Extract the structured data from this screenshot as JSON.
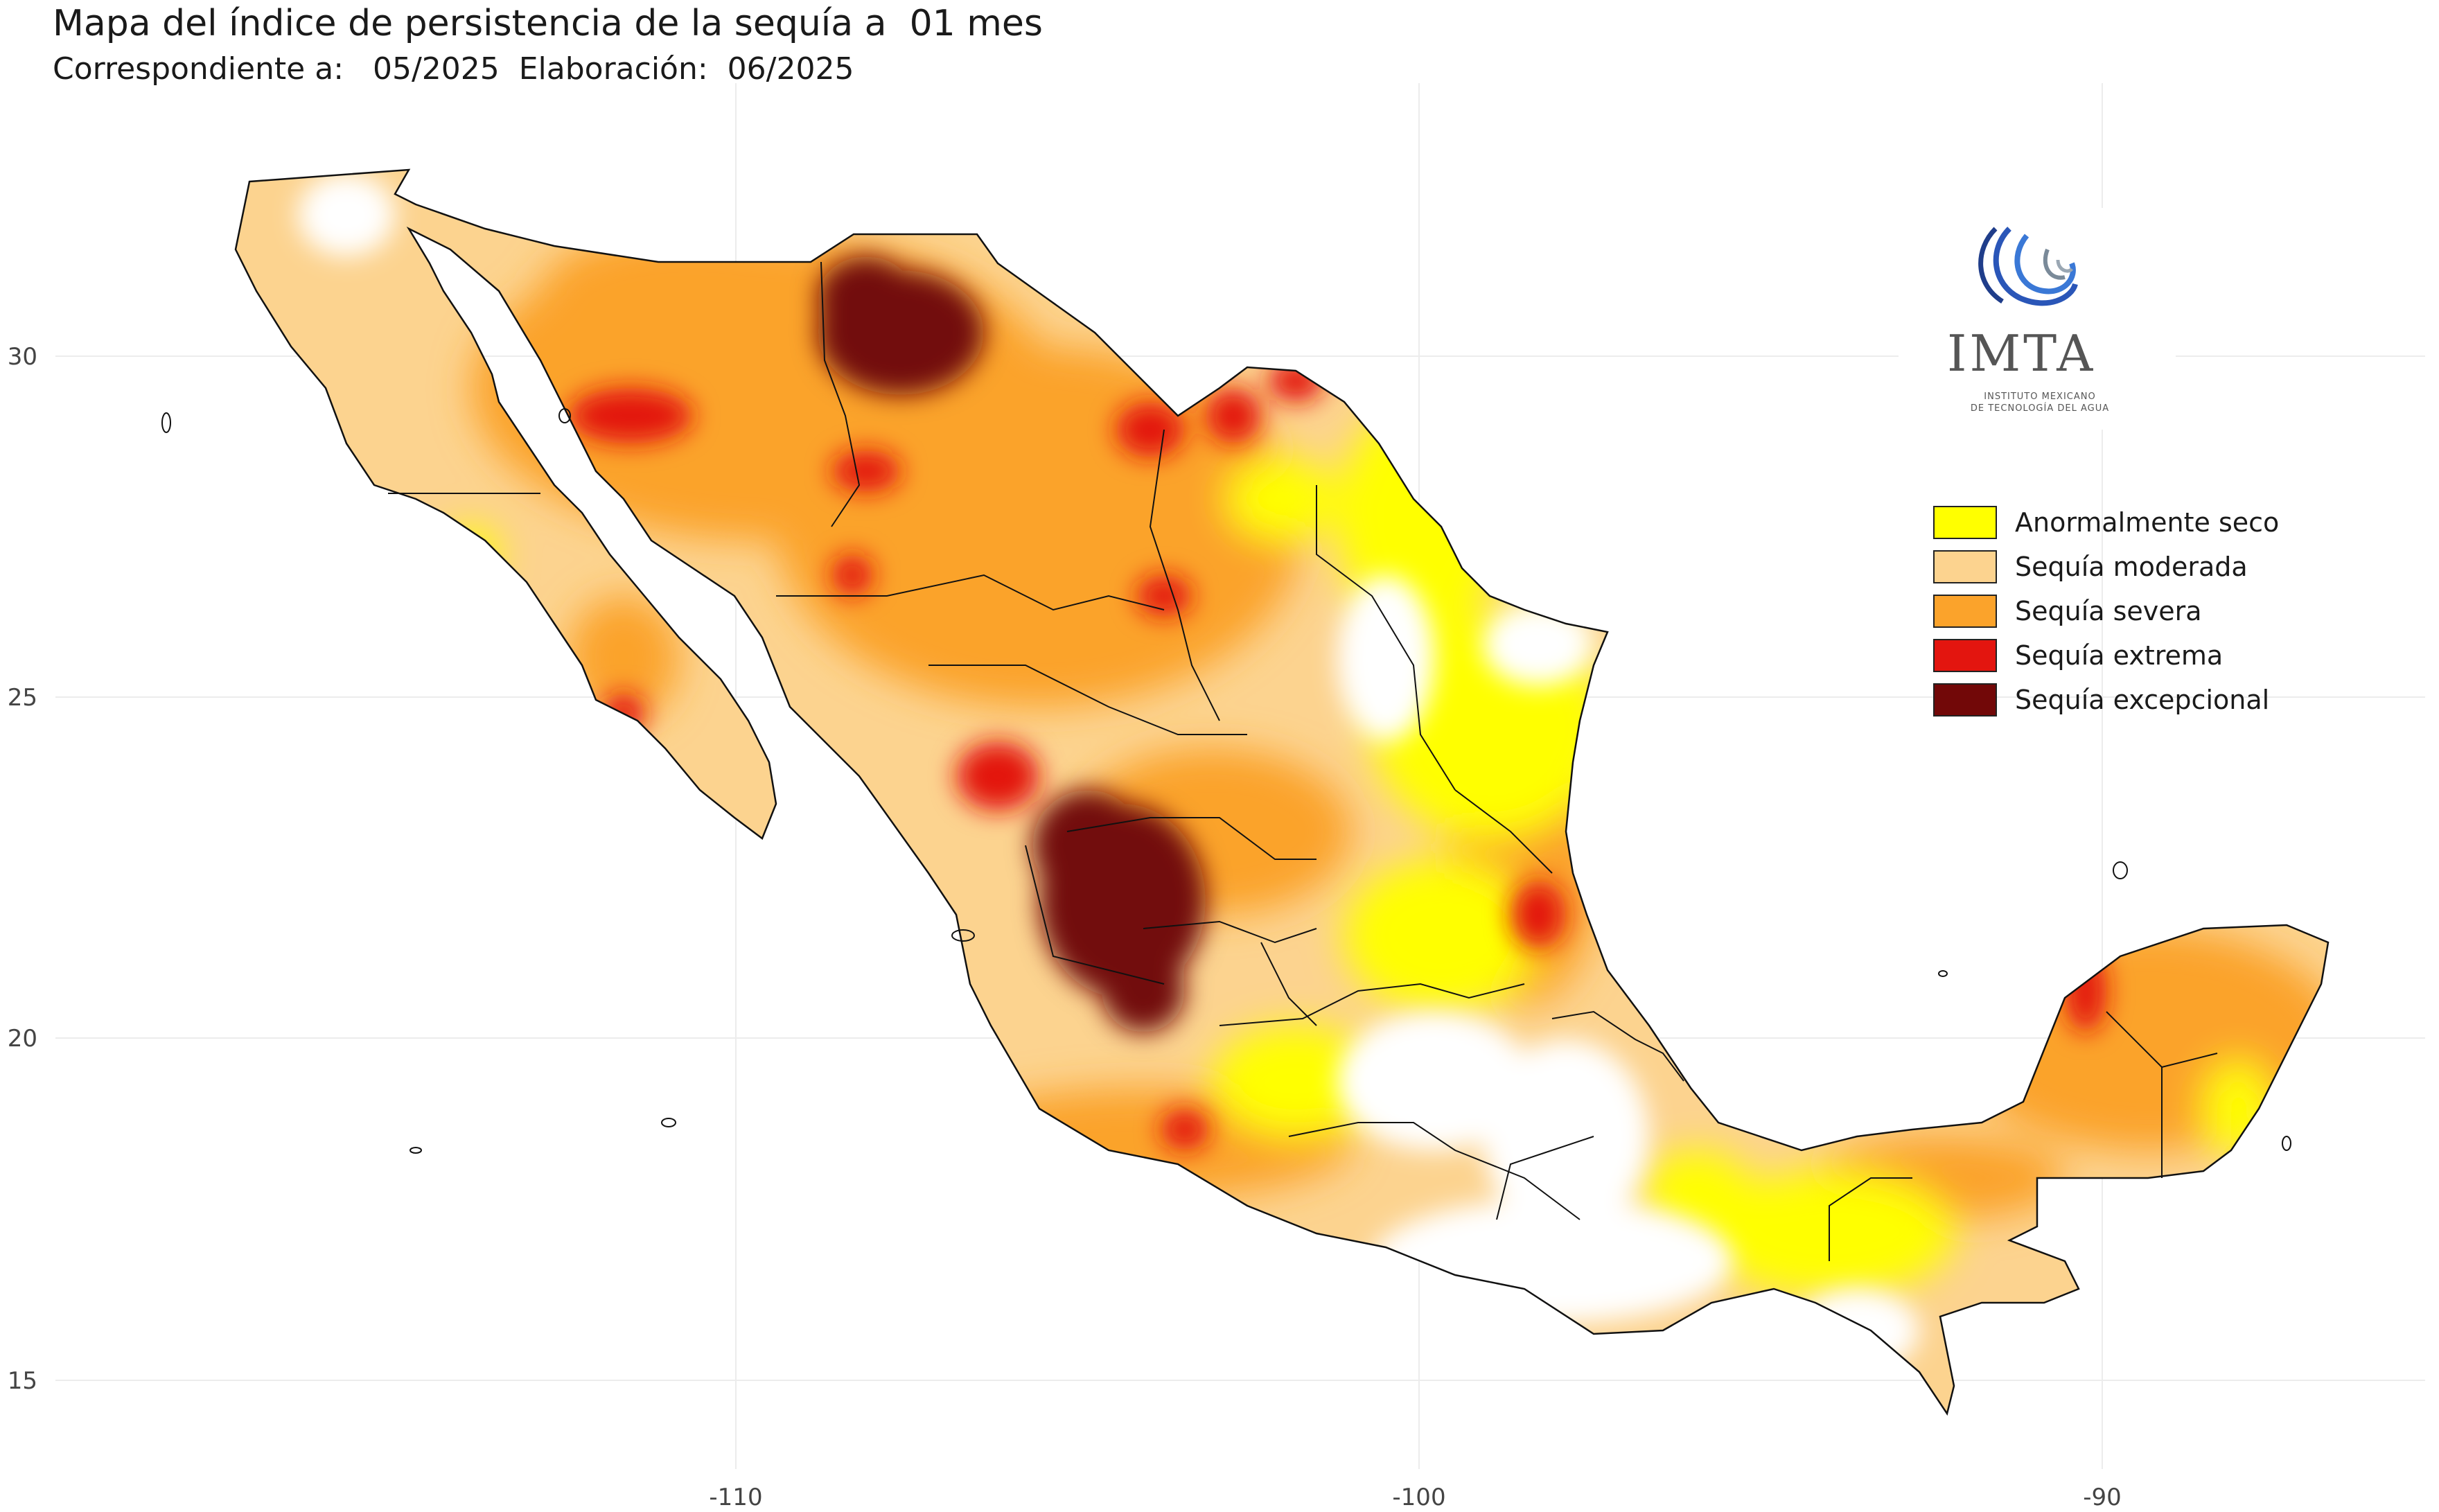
{
  "header": {
    "title": "Mapa del índice de persistencia de la sequía a  01 mes",
    "subtitle": "Correspondiente a:   05/2025  Elaboración:  06/2025"
  },
  "axes": {
    "x_ticks": [
      "-110",
      "-100",
      "-90"
    ],
    "y_ticks": [
      "30",
      "25",
      "20",
      "15"
    ]
  },
  "legend": {
    "items": [
      {
        "label": "Anormalmente seco",
        "color": "#ffff00"
      },
      {
        "label": "Sequía moderada",
        "color": "#fcd38f"
      },
      {
        "label": "Sequía severa",
        "color": "#fba32b"
      },
      {
        "label": "Sequía extrema",
        "color": "#e3150f"
      },
      {
        "label": "Sequía excepcional",
        "color": "#720808"
      }
    ]
  },
  "logo": {
    "name": "IMTA",
    "subtitle_line1": "INSTITUTO MEXICANO",
    "subtitle_line2": "DE TECNOLOGÍA DEL AGUA"
  }
}
